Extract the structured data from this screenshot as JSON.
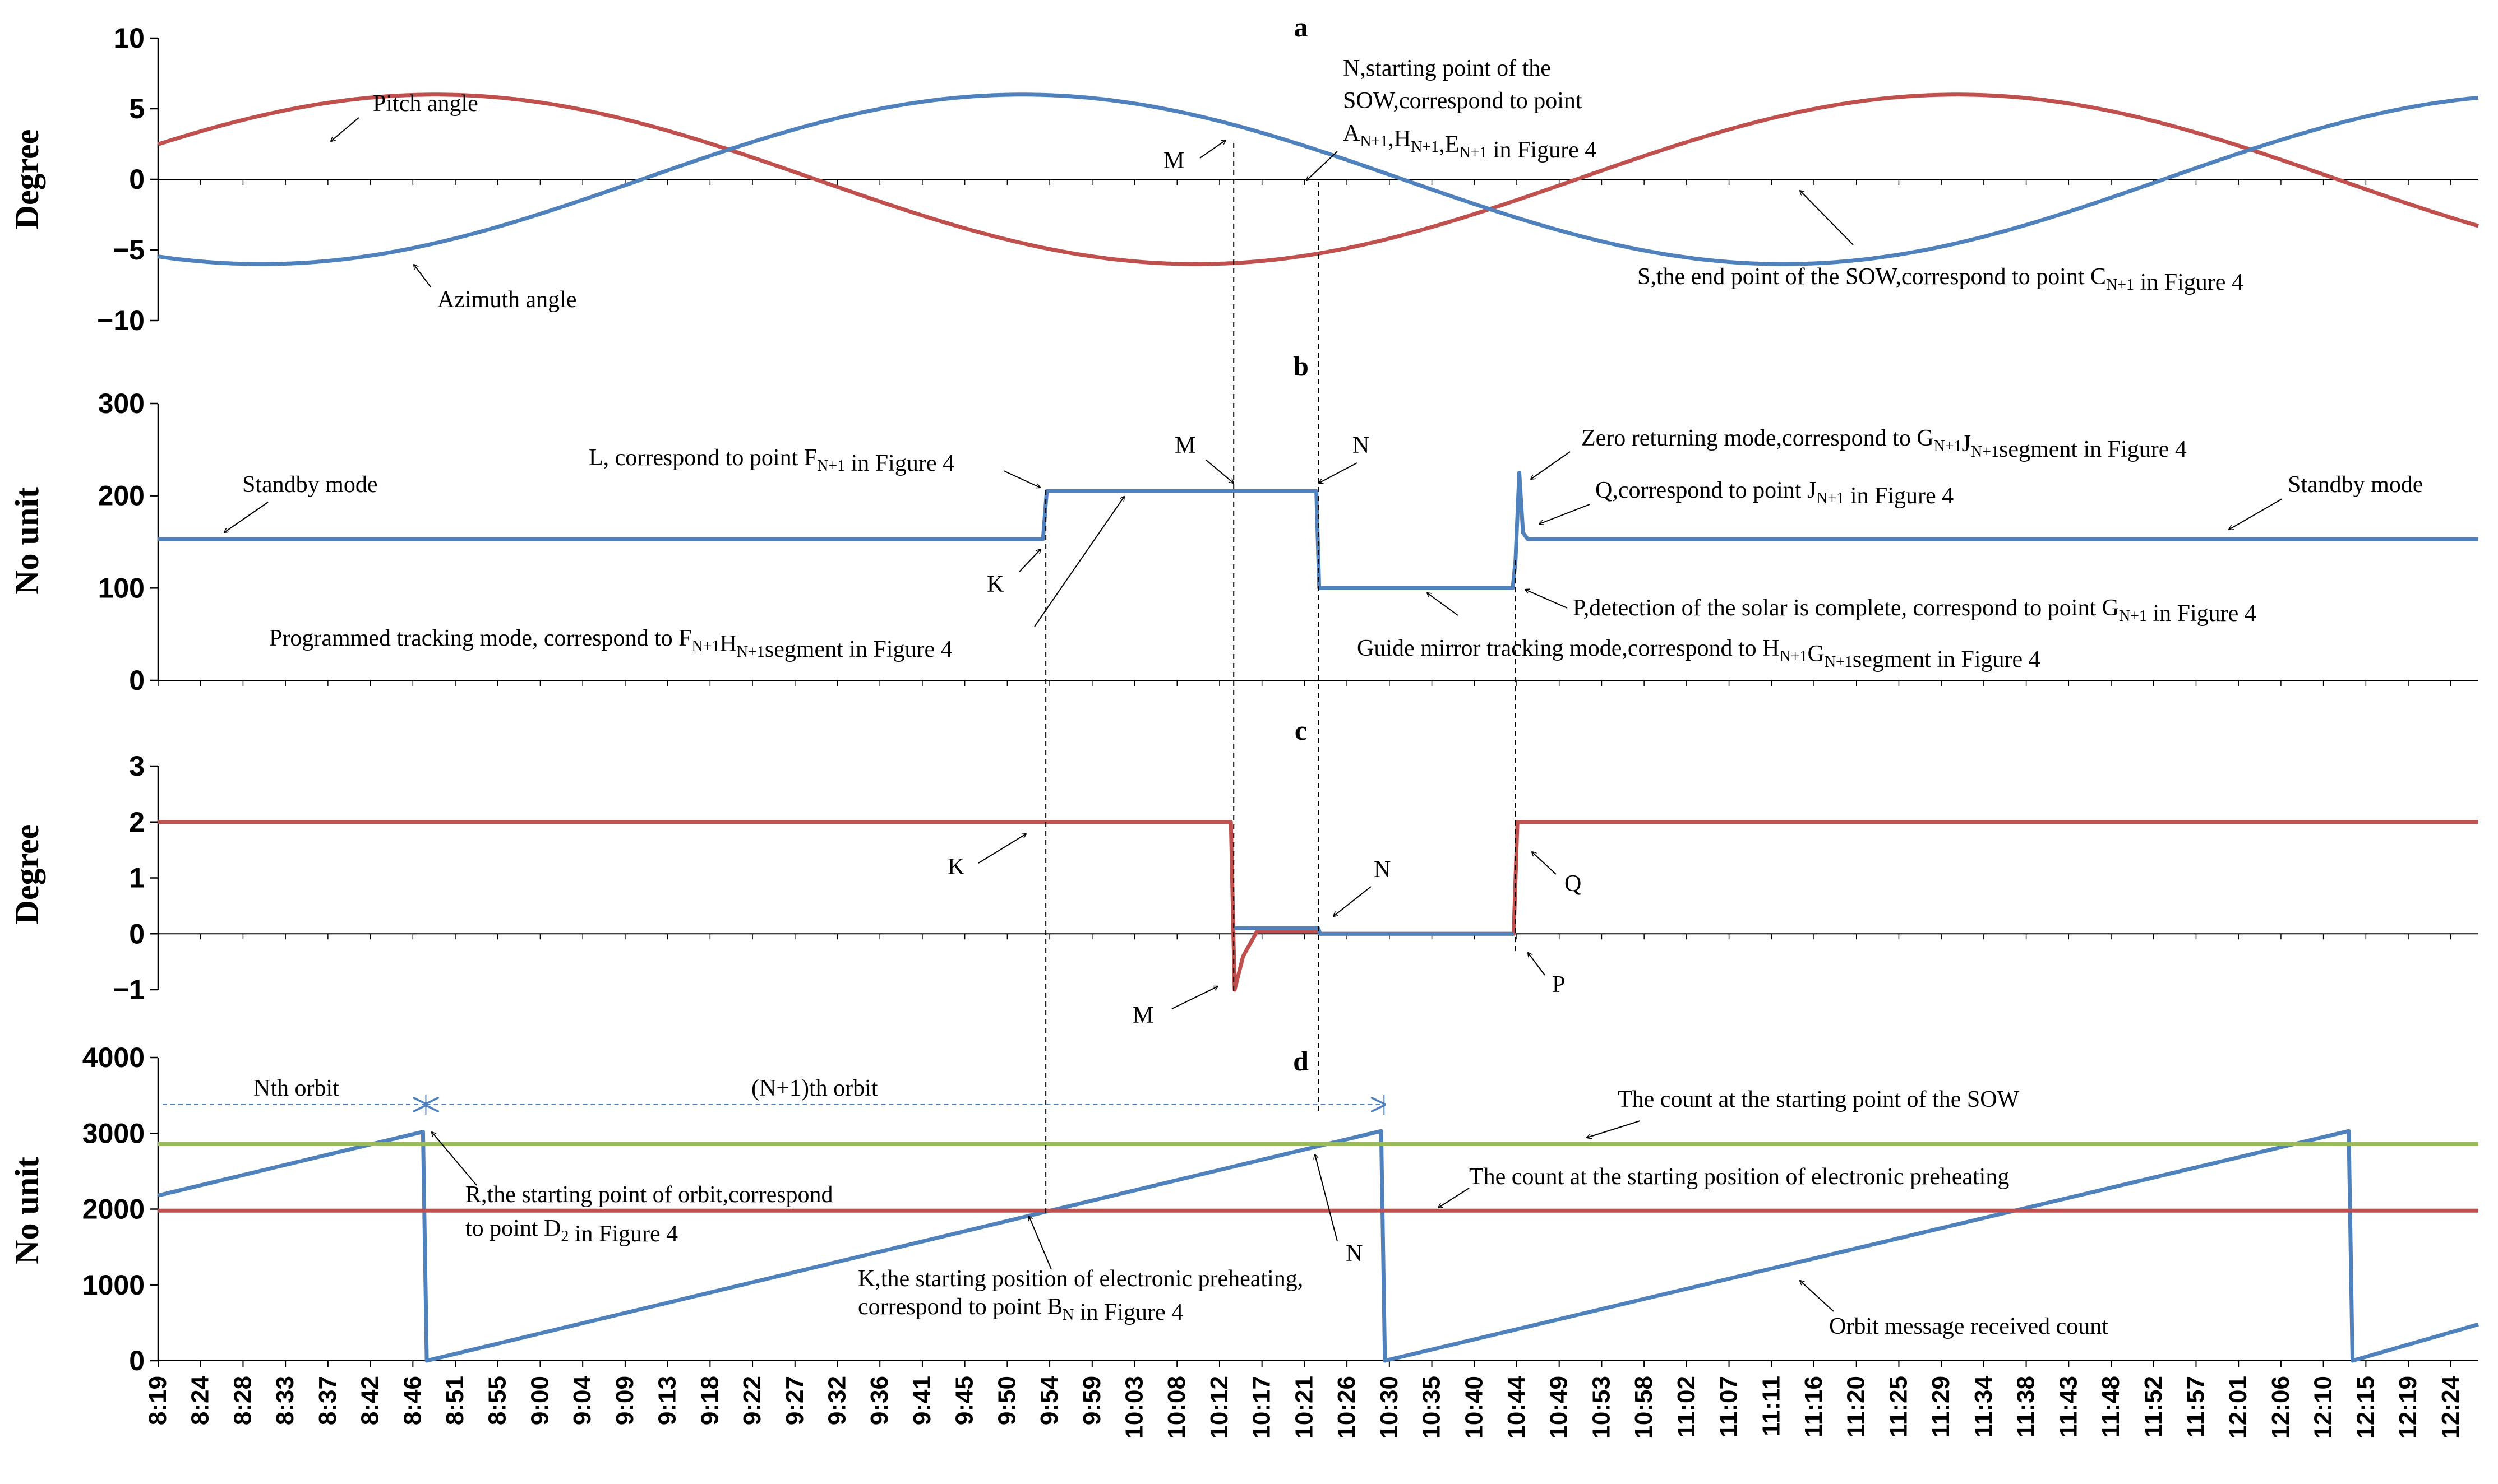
{
  "chart_data": {
    "type": "line",
    "x_tick_labels": [
      "8:19",
      "8:24",
      "8:28",
      "8:33",
      "8:37",
      "8:42",
      "8:46",
      "8:51",
      "8:55",
      "9:00",
      "9:04",
      "9:09",
      "9:13",
      "9:18",
      "9:22",
      "9:27",
      "9:32",
      "9:36",
      "9:41",
      "9:45",
      "9:50",
      "9:54",
      "9:59",
      "10:03",
      "10:08",
      "10:12",
      "10:17",
      "10:21",
      "10:26",
      "10:30",
      "10:35",
      "10:40",
      "10:44",
      "10:49",
      "10:53",
      "10:58",
      "11:02",
      "11:07",
      "11:11",
      "11:16",
      "11:20",
      "11:25",
      "11:29",
      "11:34",
      "11:38",
      "11:43",
      "11:48",
      "11:52",
      "11:57",
      "12:01",
      "12:06",
      "12:10",
      "12:15",
      "12:19",
      "12:24"
    ],
    "x_range_min": [
      499,
      746
    ],
    "vlines_min": {
      "K": 593.5,
      "M": 613.5,
      "N": 622.5,
      "P": 643.5,
      "R": 527.5,
      "End": 629.5
    },
    "panels": [
      {
        "id": "a",
        "title": "a",
        "ylabel": "Degree",
        "ylim": [
          -10,
          10
        ],
        "yticks": [
          -10,
          -5,
          0,
          5,
          10
        ],
        "series": [
          {
            "name": "Pitch angle",
            "color": "#C0504D",
            "kind": "sine",
            "amplitude": 6,
            "phase_min": 528.5,
            "period_min": 162
          },
          {
            "name": "Azimuth angle",
            "color": "#4F81BD",
            "kind": "sine",
            "amplitude": 6,
            "phase_min": 510,
            "period_min": 162,
            "negate": true
          }
        ],
        "annotations": [
          {
            "id": "pitch",
            "lines": [
              {
                "t": "Pitch angle"
              }
            ]
          },
          {
            "id": "azimuth",
            "lines": [
              {
                "t": "Azimuth angle"
              }
            ]
          },
          {
            "id": "m",
            "lines": [
              {
                "t": "M"
              }
            ]
          },
          {
            "id": "n",
            "lines": [
              {
                "t": "N,starting point of the"
              },
              {
                "t": "SOW,correspond to point"
              },
              {
                "t": "A",
                "s": "N+1",
                "t2": ",H",
                "s2": "N+1",
                "t3": ",E",
                "s3": "N+1",
                "t4": " in Figure 4"
              }
            ]
          },
          {
            "id": "s",
            "lines": [
              {
                "t": "S,the end point of the SOW,correspond to point C",
                "s": "N+1",
                "t2": " in Figure 4"
              }
            ]
          }
        ]
      },
      {
        "id": "b",
        "title": "b",
        "ylabel": "No unit",
        "ylim": [
          0,
          300
        ],
        "yticks": [
          0,
          100,
          200,
          300
        ],
        "series": [
          {
            "name": "Mode",
            "color": "#4F81BD",
            "kind": "points",
            "points": [
              [
                499,
                153
              ],
              [
                593.2,
                153
              ],
              [
                593.6,
                205
              ],
              [
                622.3,
                205
              ],
              [
                622.6,
                100
              ],
              [
                643.2,
                100
              ],
              [
                643.5,
                130
              ],
              [
                643.9,
                225
              ],
              [
                644.3,
                160
              ],
              [
                644.8,
                153
              ],
              [
                746,
                153
              ]
            ]
          }
        ],
        "annotations": [
          {
            "id": "standby1",
            "lines": [
              {
                "t": "Standby mode"
              }
            ]
          },
          {
            "id": "l",
            "lines": [
              {
                "t": "L, correspond to point F",
                "s": "N+1",
                "t2": " in Figure 4"
              }
            ]
          },
          {
            "id": "m",
            "lines": [
              {
                "t": "M"
              }
            ]
          },
          {
            "id": "n",
            "lines": [
              {
                "t": "N"
              }
            ]
          },
          {
            "id": "k",
            "lines": [
              {
                "t": "K"
              }
            ]
          },
          {
            "id": "prog",
            "lines": [
              {
                "t": "Programmed tracking mode, correspond to F",
                "s": "N+1",
                "t2": "H",
                "s2": "N+1",
                "t3": "segment in Figure 4"
              }
            ]
          },
          {
            "id": "zero",
            "lines": [
              {
                "t": "Zero returning mode,correspond to G",
                "s": "N+1",
                "t2": "J",
                "s2": "N+1",
                "t3": "segment in Figure 4"
              }
            ]
          },
          {
            "id": "q",
            "lines": [
              {
                "t": "Q,correspond to point J",
                "s": "N+1",
                "t2": " in Figure 4"
              }
            ]
          },
          {
            "id": "standby2",
            "lines": [
              {
                "t": "Standby mode"
              }
            ]
          },
          {
            "id": "p",
            "lines": [
              {
                "t": "P,detection of the solar is complete, correspond to point G",
                "s": "N+1",
                "t2": " in Figure 4"
              }
            ]
          },
          {
            "id": "guide",
            "lines": [
              {
                "t": "Guide mirror tracking mode,correspond to H",
                "s": "N+1",
                "t2": "G",
                "s2": "N+1",
                "t3": "segment in Figure 4"
              }
            ]
          }
        ]
      },
      {
        "id": "c",
        "title": "c",
        "ylabel": "Degree",
        "ylim": [
          -1,
          3
        ],
        "yticks": [
          -1,
          0,
          1,
          2,
          3
        ],
        "series": [
          {
            "name": "Red",
            "color": "#C0504D",
            "kind": "points",
            "points": [
              [
                499,
                2
              ],
              [
                613.2,
                2
              ],
              [
                613.6,
                -1
              ],
              [
                614.5,
                -0.4
              ],
              [
                616,
                0.05
              ],
              [
                622.5,
                0.05
              ],
              [
                622.7,
                0
              ],
              [
                643.3,
                0
              ],
              [
                643.7,
                2
              ],
              [
                746,
                2
              ]
            ]
          },
          {
            "name": "Blue",
            "color": "#4F81BD",
            "kind": "points",
            "points": [
              [
                613.6,
                0.1
              ],
              [
                622.5,
                0.1
              ],
              [
                622.7,
                0
              ],
              [
                643.3,
                0
              ]
            ]
          }
        ],
        "annotations": [
          {
            "id": "k",
            "lines": [
              {
                "t": "K"
              }
            ]
          },
          {
            "id": "n",
            "lines": [
              {
                "t": "N"
              }
            ]
          },
          {
            "id": "q",
            "lines": [
              {
                "t": "Q"
              }
            ]
          },
          {
            "id": "m",
            "lines": [
              {
                "t": "M"
              }
            ]
          },
          {
            "id": "p",
            "lines": [
              {
                "t": "P"
              }
            ]
          }
        ]
      },
      {
        "id": "d",
        "title": "d",
        "ylabel": "No unit",
        "ylim": [
          0,
          4000
        ],
        "yticks": [
          0,
          1000,
          2000,
          3000,
          4000
        ],
        "series": [
          {
            "name": "Orbit message received count",
            "color": "#4F81BD",
            "kind": "points",
            "points": [
              [
                499,
                2180
              ],
              [
                527.2,
                3020
              ],
              [
                527.6,
                0
              ],
              [
                629.2,
                3030
              ],
              [
                629.6,
                0
              ],
              [
                732.2,
                3030
              ],
              [
                732.6,
                0
              ],
              [
                746,
                480
              ]
            ]
          },
          {
            "name": "The count at the starting point of the SOW",
            "color": "#9BBB59",
            "kind": "hline",
            "value": 2860
          },
          {
            "name": "The count at the starting position of electronic preheating",
            "color": "#C0504D",
            "kind": "hline",
            "value": 1980
          }
        ],
        "annotations": [
          {
            "id": "nth",
            "lines": [
              {
                "t": "Nth orbit"
              }
            ]
          },
          {
            "id": "n1th",
            "lines": [
              {
                "t": "(N+1)th orbit"
              }
            ]
          },
          {
            "id": "sow",
            "lines": [
              {
                "t": "The count at the starting point of the SOW"
              }
            ]
          },
          {
            "id": "r",
            "lines": [
              {
                "t": "R,the starting point of orbit,correspond"
              },
              {
                "t": "to point D",
                "s": "2",
                "t2": " in Figure 4"
              }
            ]
          },
          {
            "id": "pre",
            "lines": [
              {
                "t": "The count at the starting position of electronic preheating"
              }
            ]
          },
          {
            "id": "n",
            "lines": [
              {
                "t": "N"
              }
            ]
          },
          {
            "id": "k",
            "lines": [
              {
                "t": "K,the starting position of electronic preheating,"
              },
              {
                "t": "correspond to point B",
                "s": "N",
                "t2": " in Figure 4"
              }
            ]
          },
          {
            "id": "orbit",
            "lines": [
              {
                "t": "Orbit message received count"
              }
            ]
          }
        ]
      }
    ]
  }
}
